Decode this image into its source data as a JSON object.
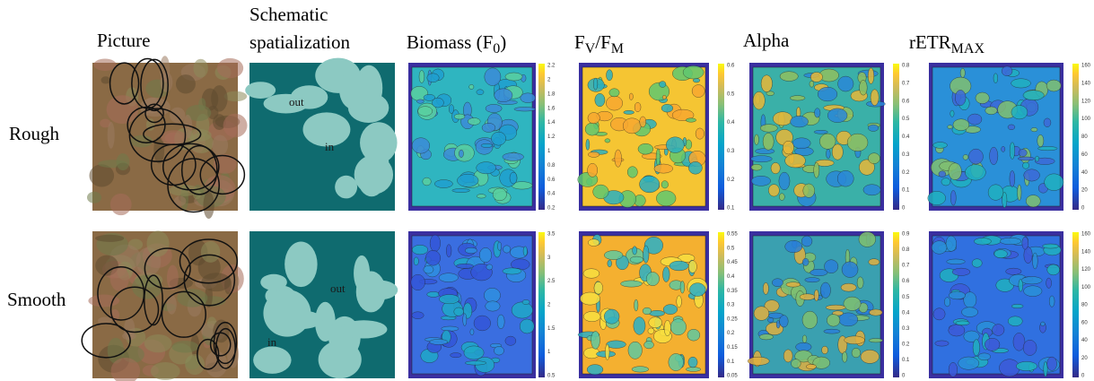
{
  "column_headers": {
    "picture": "Picture",
    "schematic": [
      "Schematic",
      "spatialization"
    ],
    "biomass": [
      "Biomass (F",
      "0",
      ")"
    ],
    "fv_fm": [
      "F",
      "V",
      "/F",
      "M"
    ],
    "alpha": "Alpha",
    "retr_max": [
      "rETR",
      "MAX"
    ]
  },
  "rows": [
    {
      "label": "Rough",
      "schematic_labels": [
        "out",
        "in"
      ],
      "colorbars": {
        "biomass": [
          2.2,
          2,
          1.8,
          1.6,
          1.4,
          1.2,
          1,
          0.8,
          0.6,
          0.4,
          0.2
        ],
        "fv_fm": [
          0.6,
          0.5,
          0.4,
          0.3,
          0.2,
          0.1
        ],
        "alpha": [
          0.8,
          0.7,
          0.6,
          0.5,
          0.4,
          0.3,
          0.2,
          0.1,
          0
        ],
        "retr_max": [
          160,
          140,
          120,
          100,
          80,
          60,
          40,
          20,
          0
        ]
      }
    },
    {
      "label": "Smooth",
      "schematic_labels": [
        "out",
        "in"
      ],
      "colorbars": {
        "biomass": [
          3.5,
          3,
          2.5,
          2,
          1.5,
          1,
          0.5
        ],
        "fv_fm": [
          0.55,
          0.5,
          0.45,
          0.4,
          0.35,
          0.3,
          0.25,
          0.2,
          0.15,
          0.1,
          0.05
        ],
        "alpha": [
          0.9,
          0.8,
          0.7,
          0.6,
          0.5,
          0.4,
          0.3,
          0.2,
          0.1,
          0
        ],
        "retr_max": [
          160,
          140,
          120,
          100,
          80,
          60,
          40,
          20,
          0
        ]
      }
    }
  ]
}
